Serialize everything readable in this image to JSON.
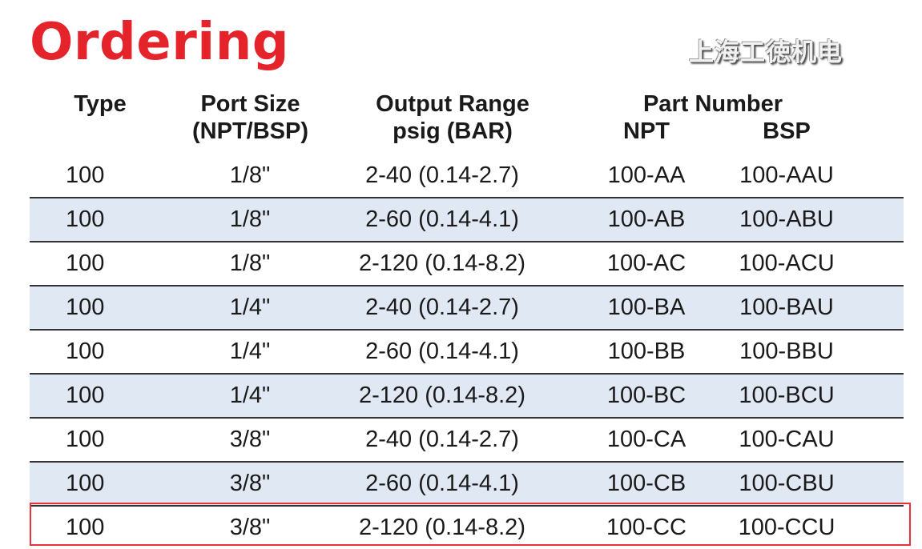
{
  "title": "Ordering",
  "headers": {
    "type": "Type",
    "port_size": [
      "Port Size",
      "(NPT/BSP)"
    ],
    "output_range": [
      "Output Range",
      "psig (BAR)"
    ],
    "part_number": "Part Number",
    "npt": "NPT",
    "bsp": "BSP"
  },
  "rows": [
    [
      "100",
      "1/8\"",
      "2-40 (0.14-2.7)",
      "100-AA",
      "100-AAU"
    ],
    [
      "100",
      "1/8\"",
      "2-60 (0.14-4.1)",
      "100-AB",
      "100-ABU"
    ],
    [
      "100",
      "1/8\"",
      "2-120 (0.14-8.2)",
      "100-AC",
      "100-ACU"
    ],
    [
      "100",
      "1/4\"",
      "2-40 (0.14-2.7)",
      "100-BA",
      "100-BAU"
    ],
    [
      "100",
      "1/4\"",
      "2-60 (0.14-4.1)",
      "100-BB",
      "100-BBU"
    ],
    [
      "100",
      "1/4\"",
      "2-120 (0.14-8.2)",
      "100-BC",
      "100-BCU"
    ],
    [
      "100",
      "3/8\"",
      "2-40 (0.14-2.7)",
      "100-CA",
      "100-CAU"
    ],
    [
      "100",
      "3/8\"",
      "2-60 (0.14-4.1)",
      "100-CB",
      "100-CBU"
    ],
    [
      "100",
      "3/8\"",
      "2-120 (0.14-8.2)",
      "100-CC",
      "100-CCU"
    ]
  ],
  "highlighted_row": 8,
  "watermark": "上海工徳机电",
  "colors": {
    "title": "#e5232b",
    "shade": "#e0e8f4",
    "highlight": "#e8323a"
  }
}
